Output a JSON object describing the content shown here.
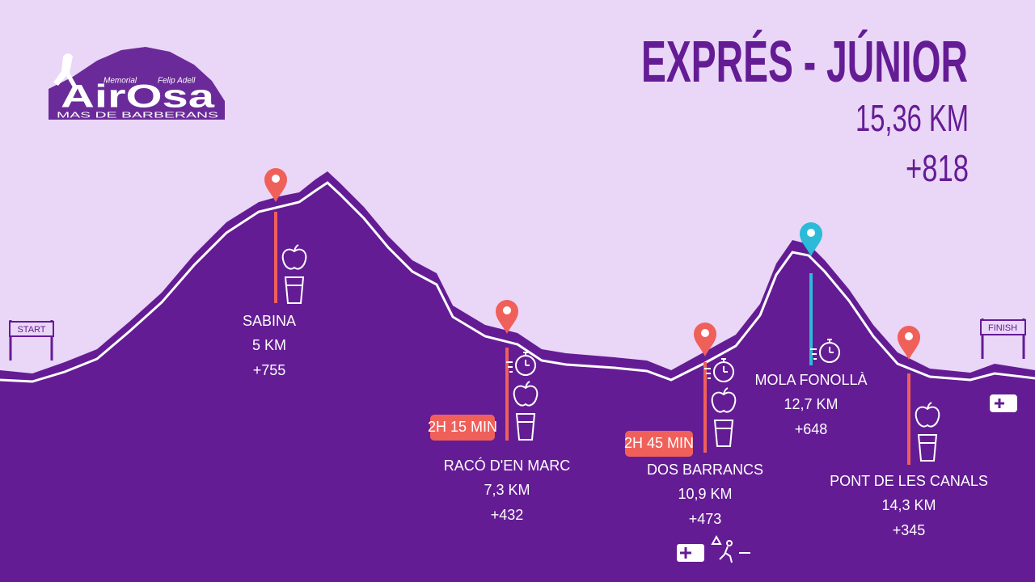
{
  "logo": {
    "top_left": "Memorial",
    "top_right": "Felip Adell",
    "main": "AirOsa",
    "sub": "MAS DE BARBERANS"
  },
  "header": {
    "title": "EXPRÉS - JÚNIOR",
    "distance": "15,36 KM",
    "elevation": "+818"
  },
  "gates": {
    "start": "START",
    "finish": "FINISH"
  },
  "checkpoints": [
    {
      "name": "SABINA",
      "distance": "5 KM",
      "elevation": "+755"
    },
    {
      "name": "RACÓ D'EN MARC",
      "distance": "7,3 KM",
      "elevation": "+432",
      "cutoff": "2H 15 MIN"
    },
    {
      "name": "DOS BARRANCS",
      "distance": "10,9 KM",
      "elevation": "+473",
      "cutoff": "2H 45 MIN"
    },
    {
      "name": "MOLA FONOLLÀ",
      "distance": "12,7 KM",
      "elevation": "+648"
    },
    {
      "name": "PONT DE LES CANALS",
      "distance": "14,3 KM",
      "elevation": "+345"
    }
  ]
}
